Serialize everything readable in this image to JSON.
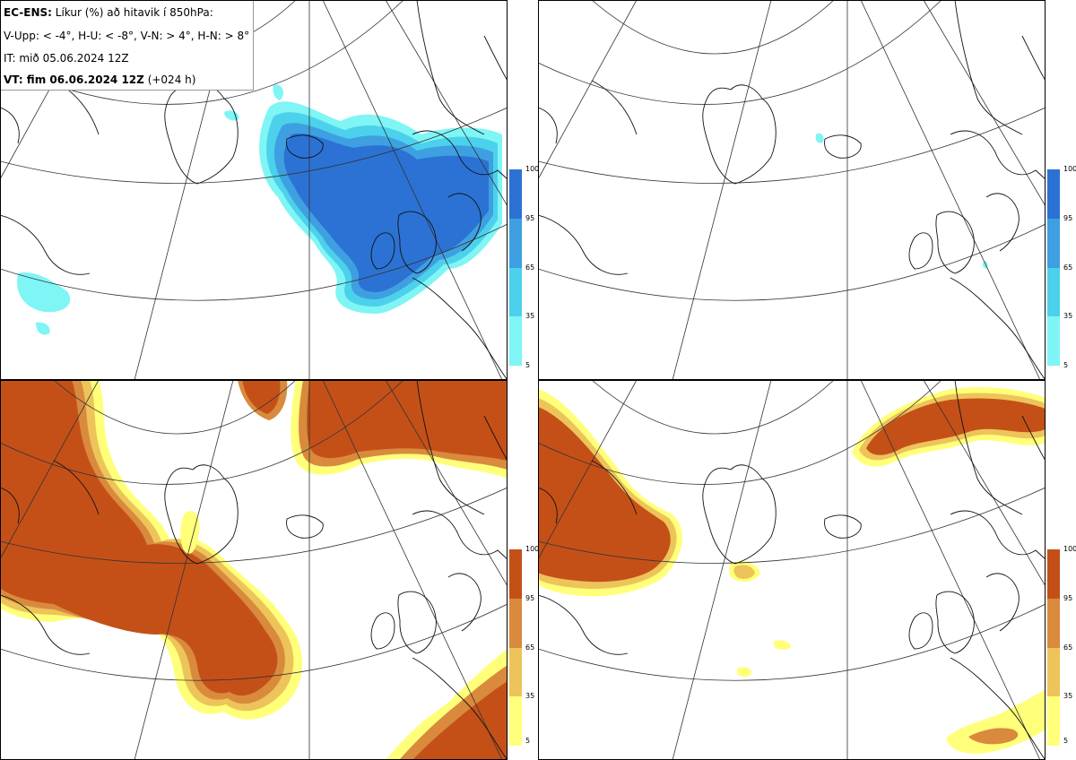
{
  "header": {
    "line1_bold": "EC-ENS:",
    "line1_rest": " Líkur (%) að hitavik í 850hPa:",
    "line2": "V-Upp: < -4°, H-U: < -8°, V-N: > 4°, H-N: > 8°",
    "line3": "IT: mið 05.06.2024 12Z",
    "line4_bold": "VT: fim 06.06.2024 12Z",
    "line4_rest": " (+024 h)"
  },
  "colors": {
    "cold_scale": [
      "#7ff5f5",
      "#4cd1ec",
      "#3ea0e0",
      "#2b72d4"
    ],
    "warm_scale": [
      "#ffff7a",
      "#edc45a",
      "#d98a3d",
      "#c45018"
    ],
    "coast": "#111111",
    "grid": "#333333"
  },
  "colorbar": {
    "ticks": [
      "5",
      "35",
      "65",
      "95",
      "100"
    ]
  },
  "panels": [
    {
      "id": "V-Upp",
      "variable": "anomaly < -4°"
    },
    {
      "id": "H-U",
      "variable": "anomaly < -8°"
    },
    {
      "id": "V-N",
      "variable": "anomaly > 4°"
    },
    {
      "id": "H-N",
      "variable": "anomaly > 8°"
    }
  ]
}
